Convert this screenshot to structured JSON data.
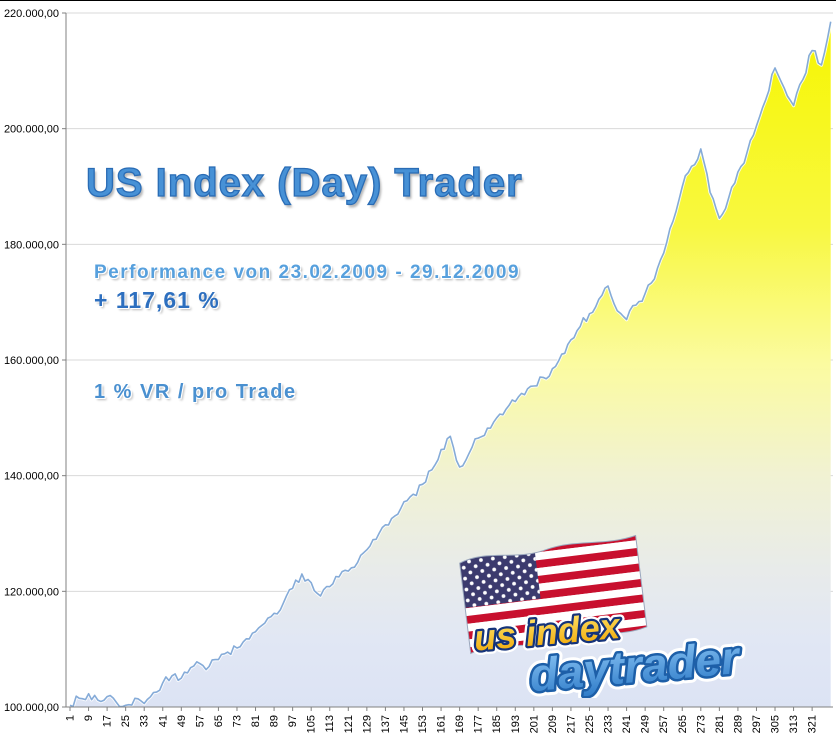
{
  "header": {
    "title": "US Index (Day) Trader",
    "performance_line": "Performance  von  23.02.2009 - 29.12.2009",
    "performance_value": "+ 117,61 %",
    "risk_note": "1 % VR / pro Trade"
  },
  "logo": {
    "line1": "us index",
    "line2": "daytrader",
    "flag_icon": "us-flag"
  },
  "colors": {
    "line": "#85abd8",
    "line_glow": "#ffffff",
    "grid": "#d9d9d9",
    "axis": "#808080",
    "tick_text": "#000000",
    "area_top": "#f6f600",
    "area_mid": "#fbfba0",
    "area_bottom": "#dce3f4",
    "title_blue": "#4791d6"
  },
  "chart_data": {
    "type": "area",
    "title": "US Index (Day) Trader",
    "xlim": [
      1,
      330
    ],
    "ylim": [
      100000,
      220000
    ],
    "grid": "horizontal",
    "legend": "none",
    "y_ticks": [
      {
        "value": 100000,
        "label": "100.000,00"
      },
      {
        "value": 120000,
        "label": "120.000,00"
      },
      {
        "value": 140000,
        "label": "140.000,00"
      },
      {
        "value": 160000,
        "label": "160.000,00"
      },
      {
        "value": 180000,
        "label": "180.000,00"
      },
      {
        "value": 200000,
        "label": "200.000,00"
      },
      {
        "value": 220000,
        "label": "220.000,00"
      }
    ],
    "x_ticks": [
      1,
      9,
      17,
      25,
      33,
      41,
      49,
      57,
      65,
      73,
      81,
      89,
      97,
      105,
      113,
      121,
      129,
      137,
      145,
      153,
      161,
      169,
      177,
      185,
      193,
      201,
      209,
      217,
      225,
      233,
      241,
      249,
      257,
      265,
      273,
      281,
      289,
      297,
      305,
      313,
      321
    ],
    "x": [
      1,
      5,
      9,
      13,
      17,
      21,
      25,
      29,
      33,
      37,
      41,
      45,
      49,
      53,
      57,
      61,
      65,
      69,
      73,
      77,
      81,
      85,
      89,
      93,
      97,
      101,
      105,
      109,
      113,
      117,
      121,
      125,
      129,
      133,
      137,
      141,
      145,
      149,
      153,
      157,
      161,
      165,
      169,
      173,
      177,
      181,
      185,
      189,
      193,
      197,
      201,
      205,
      209,
      213,
      217,
      221,
      225,
      229,
      233,
      237,
      241,
      245,
      249,
      253,
      257,
      261,
      265,
      269,
      273,
      277,
      281,
      285,
      289,
      293,
      297,
      301,
      305,
      309,
      313,
      317,
      321,
      325,
      329
    ],
    "values": [
      100300,
      101500,
      102300,
      101200,
      101800,
      100800,
      100300,
      101500,
      100600,
      102500,
      104200,
      105400,
      105000,
      106800,
      107500,
      107000,
      108200,
      109500,
      110200,
      111800,
      113000,
      114500,
      116200,
      118000,
      120500,
      123000,
      121500,
      119200,
      120800,
      122500,
      123500,
      125000,
      127200,
      129000,
      131500,
      133000,
      135500,
      136800,
      138500,
      141000,
      144500,
      146800,
      141500,
      143800,
      146500,
      148200,
      150000,
      151500,
      152800,
      154000,
      155500,
      157000,
      158500,
      161000,
      163500,
      165800,
      168000,
      170500,
      172800,
      168500,
      167000,
      169500,
      171500,
      174000,
      178500,
      184000,
      190000,
      193500,
      196500,
      189000,
      184500,
      188000,
      192500,
      196000,
      200500,
      205000,
      210500,
      207000,
      204000,
      208500,
      213500,
      211000,
      218500
    ]
  }
}
